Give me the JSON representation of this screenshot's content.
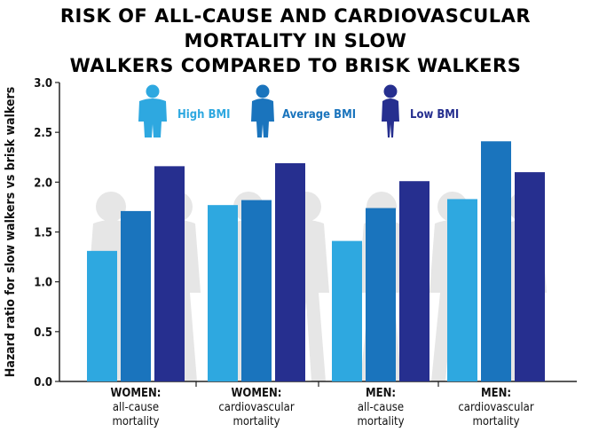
{
  "chart_data": {
    "type": "bar",
    "title_lines": [
      "RISK OF ALL-CAUSE AND CARDIOVASCULAR MORTALITY IN SLOW",
      "WALKERS COMPARED TO BRISK WALKERS"
    ],
    "ylabel": "Hazard ratio for slow walkers vs brisk walkers",
    "ylim": [
      0,
      3.0
    ],
    "yticks": [
      "0.0",
      "0.5",
      "1.0",
      "1.5",
      "2.0",
      "2.5",
      "3.0"
    ],
    "categories": [
      [
        "WOMEN:",
        "all-cause",
        "mortality"
      ],
      [
        "WOMEN:",
        "cardiovascular",
        "mortality"
      ],
      [
        "MEN:",
        "all-cause",
        "mortality"
      ],
      [
        "MEN:",
        "cardiovascular",
        "mortality"
      ]
    ],
    "series": [
      {
        "name": "High BMI",
        "color": "#2ea8e0",
        "values": [
          1.31,
          1.77,
          1.41,
          1.83
        ]
      },
      {
        "name": "Average BMI",
        "color": "#1a74bd",
        "values": [
          1.71,
          1.82,
          1.74,
          2.41
        ]
      },
      {
        "name": "Low BMI",
        "color": "#262f8f",
        "values": [
          2.16,
          2.19,
          2.01,
          2.1
        ]
      }
    ],
    "legend_position": "top",
    "grid": false
  }
}
